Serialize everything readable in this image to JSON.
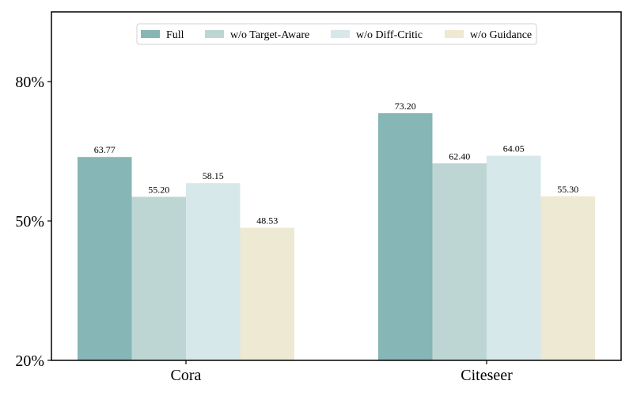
{
  "chart_data": {
    "type": "bar",
    "categories": [
      "Cora",
      "Citeseer"
    ],
    "series": [
      {
        "name": "Full",
        "values": [
          63.77,
          73.2
        ],
        "color": "#86b6b5"
      },
      {
        "name": "w/o Target-Aware",
        "values": [
          55.2,
          62.4
        ],
        "color": "#bdd6d4"
      },
      {
        "name": "w/o Diff-Critic",
        "values": [
          58.15,
          64.05
        ],
        "color": "#d7e8eb"
      },
      {
        "name": "w/o Guidance",
        "values": [
          48.53,
          55.3
        ],
        "color": "#ede9d3"
      }
    ],
    "data_labels": [
      [
        "63.77",
        "73.20"
      ],
      [
        "55.20",
        "62.40"
      ],
      [
        "58.15",
        "64.05"
      ],
      [
        "48.53",
        "55.30"
      ]
    ],
    "title": "",
    "xlabel": "",
    "ylabel": "",
    "ylim": [
      20,
      95
    ],
    "yticks": [
      20,
      50,
      80
    ],
    "ytick_labels": [
      "20%",
      "50%",
      "80%"
    ],
    "grid": false,
    "legend_position": "top-center"
  }
}
